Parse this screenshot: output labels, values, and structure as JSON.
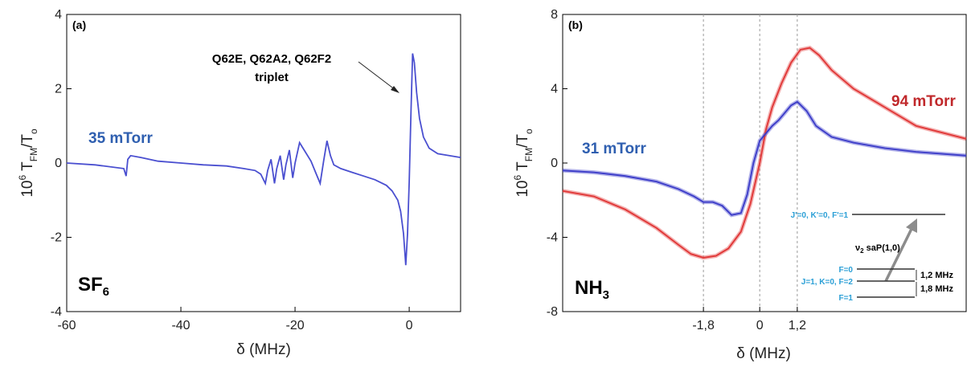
{
  "chart_data": [
    {
      "type": "line",
      "panel_label": "(a)",
      "molecule": "SF",
      "molecule_subscript": "6",
      "xlabel": "δ (MHz)",
      "ylabel": {
        "main": "10",
        "sup": "6",
        "t": " T",
        "sub": "FM",
        "slash": "/T",
        "sub2": "o"
      },
      "xlim": [
        -60,
        9
      ],
      "ylim": [
        -4,
        4
      ],
      "xticks": [
        -60,
        -40,
        -20,
        0
      ],
      "yticks": [
        -4,
        -2,
        0,
        2,
        4
      ],
      "annotation": {
        "text_line1": "Q62E, Q62A2, Q62F2",
        "text_line2": "triplet",
        "points_to_x": 0.4,
        "points_to_y": 2.9
      },
      "series": [
        {
          "name": "35 mTorr",
          "color": "#4a4fd0",
          "x": [
            -60,
            -55,
            -50,
            -49.6,
            -49.3,
            -48.8,
            -47,
            -44,
            -40,
            -36,
            -32,
            -29,
            -27,
            -26,
            -25.2,
            -24.8,
            -24.2,
            -23.6,
            -23.2,
            -22.6,
            -22,
            -21.6,
            -21,
            -20.4,
            -20,
            -19.2,
            -18.2,
            -17.2,
            -16.4,
            -15.6,
            -15,
            -14.4,
            -13.8,
            -13.2,
            -12,
            -10,
            -8,
            -6,
            -4,
            -3,
            -2,
            -1.5,
            -1,
            -0.6,
            -0.3,
            0,
            0.3,
            0.6,
            0.9,
            1.3,
            1.8,
            2.5,
            3.5,
            5,
            7,
            9
          ],
          "y": [
            0,
            -0.05,
            -0.15,
            -0.35,
            0.1,
            0.2,
            0.15,
            0.05,
            0,
            -0.05,
            -0.08,
            -0.15,
            -0.2,
            -0.3,
            -0.55,
            -0.2,
            0.1,
            -0.55,
            -0.15,
            0.2,
            -0.45,
            -0.05,
            0.35,
            -0.4,
            0,
            0.55,
            0.3,
            0.05,
            -0.25,
            -0.55,
            0.05,
            0.6,
            0.2,
            -0.05,
            -0.15,
            -0.25,
            -0.35,
            -0.45,
            -0.6,
            -0.75,
            -1.0,
            -1.3,
            -1.9,
            -2.75,
            -1.9,
            -0.5,
            1.3,
            2.95,
            2.7,
            1.9,
            1.2,
            0.7,
            0.4,
            0.25,
            0.2,
            0.15
          ]
        }
      ]
    },
    {
      "type": "line",
      "panel_label": "(b)",
      "molecule": "NH",
      "molecule_subscript": "3",
      "xlabel": "δ (MHz)",
      "ylabel": {
        "main": "10",
        "sup": "6",
        "t": " T",
        "sub": "FM",
        "slash": "/T",
        "sub2": "o"
      },
      "xlim": [
        -6.3,
        6.6
      ],
      "ylim": [
        -8,
        8
      ],
      "xticks": [
        -1.8,
        0,
        1.2
      ],
      "xtick_labels": [
        "-1,8",
        "0",
        "1,2"
      ],
      "yticks": [
        -8,
        -4,
        0,
        4,
        8
      ],
      "vlines": [
        -1.8,
        0,
        1.2
      ],
      "series": [
        {
          "name": "31 mTorr",
          "color": "#3a3ac8",
          "x": [
            -6.3,
            -5.3,
            -4.3,
            -3.3,
            -2.6,
            -2.1,
            -1.8,
            -1.5,
            -1.2,
            -0.9,
            -0.6,
            -0.4,
            -0.2,
            0,
            0.2,
            0.4,
            0.6,
            0.8,
            1.0,
            1.2,
            1.5,
            1.8,
            2.3,
            3,
            4,
            5,
            6.6
          ],
          "y": [
            -0.4,
            -0.5,
            -0.7,
            -1.0,
            -1.4,
            -1.8,
            -2.1,
            -2.1,
            -2.3,
            -2.8,
            -2.7,
            -1.7,
            0.0,
            1.2,
            1.6,
            2.0,
            2.3,
            2.7,
            3.1,
            3.3,
            2.8,
            2.0,
            1.4,
            1.1,
            0.8,
            0.6,
            0.4
          ]
        },
        {
          "name": "94 mTorr",
          "color": "#e03535",
          "x": [
            -6.3,
            -5.3,
            -4.3,
            -3.3,
            -2.6,
            -2.2,
            -1.8,
            -1.4,
            -1.0,
            -0.6,
            -0.3,
            0,
            0.2,
            0.4,
            0.7,
            1.0,
            1.3,
            1.6,
            1.9,
            2.3,
            3,
            4,
            5,
            6.6
          ],
          "y": [
            -1.5,
            -1.8,
            -2.5,
            -3.5,
            -4.4,
            -4.9,
            -5.1,
            -5.0,
            -4.6,
            -3.7,
            -2.2,
            0.0,
            1.8,
            3.0,
            4.3,
            5.4,
            6.1,
            6.2,
            5.8,
            5.0,
            4.0,
            3.0,
            2.0,
            1.3
          ]
        }
      ],
      "inset": {
        "upper_level": "J'=0, K'=0, F'=1",
        "transition": "ν",
        "transition_sub": "2",
        "transition_rest": " saP(1,0)",
        "levels": [
          "F=0",
          "J=1, K=0, F=2",
          "F=1"
        ],
        "splittings": [
          "1,2 MHz",
          "1,8 MHz"
        ]
      }
    }
  ],
  "colors": {
    "label_blue": "#2f5fb0",
    "label_red": "#c0282b",
    "inset_text": "#2a9fd6",
    "grid_dash": "#9a9a9a"
  }
}
